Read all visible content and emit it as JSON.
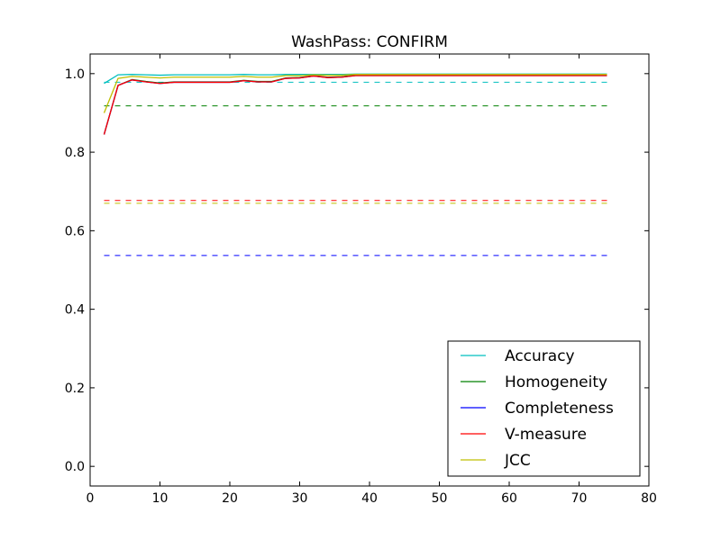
{
  "chart_data": {
    "type": "line",
    "title": "WashPass: CONFIRM",
    "xlabel": "",
    "ylabel": "",
    "xlim": [
      0,
      80
    ],
    "ylim": [
      -0.05,
      1.05
    ],
    "xticks": [
      0,
      10,
      20,
      30,
      40,
      50,
      60,
      70,
      80
    ],
    "yticks": [
      0.0,
      0.2,
      0.4,
      0.6,
      0.8,
      1.0
    ],
    "ytick_labels": [
      "0.0",
      "0.2",
      "0.4",
      "0.6",
      "0.8",
      "1.0"
    ],
    "grid": false,
    "legend_position": "bottom-right",
    "x": [
      2,
      4,
      6,
      8,
      10,
      12,
      14,
      16,
      18,
      20,
      22,
      24,
      26,
      28,
      30,
      32,
      34,
      36,
      38,
      40,
      42,
      44,
      46,
      48,
      50,
      52,
      54,
      56,
      58,
      60,
      62,
      64,
      66,
      68,
      70,
      72,
      74
    ],
    "series": [
      {
        "name": "Accuracy",
        "color": "#00bfbf",
        "values": [
          0.975,
          0.997,
          0.998,
          0.997,
          0.996,
          0.997,
          0.997,
          0.997,
          0.997,
          0.997,
          0.998,
          0.997,
          0.997,
          0.998,
          0.998,
          0.998,
          0.998,
          0.998,
          0.999,
          0.999,
          0.999,
          0.999,
          0.999,
          0.999,
          0.999,
          0.999,
          0.999,
          0.999,
          0.999,
          0.999,
          0.999,
          0.999,
          0.999,
          0.999,
          0.999,
          0.999,
          0.999
        ],
        "baseline": 0.978
      },
      {
        "name": "Homogeneity",
        "color": "#008000",
        "values": [
          0.845,
          0.97,
          0.985,
          0.98,
          0.976,
          0.979,
          0.979,
          0.979,
          0.979,
          0.979,
          0.983,
          0.98,
          0.98,
          0.989,
          0.99,
          0.995,
          0.991,
          0.992,
          0.996,
          0.996,
          0.996,
          0.996,
          0.996,
          0.996,
          0.996,
          0.996,
          0.996,
          0.996,
          0.996,
          0.996,
          0.996,
          0.996,
          0.996,
          0.996,
          0.996,
          0.996,
          0.996
        ],
        "baseline": 0.918
      },
      {
        "name": "Completeness",
        "color": "#0000ff",
        "values": [
          0.845,
          0.97,
          0.984,
          0.979,
          0.975,
          0.978,
          0.978,
          0.978,
          0.978,
          0.978,
          0.982,
          0.979,
          0.979,
          0.988,
          0.989,
          0.994,
          0.99,
          0.991,
          0.995,
          0.995,
          0.995,
          0.995,
          0.995,
          0.995,
          0.995,
          0.995,
          0.995,
          0.995,
          0.995,
          0.995,
          0.995,
          0.995,
          0.995,
          0.995,
          0.995,
          0.995,
          0.995
        ],
        "baseline": 0.537
      },
      {
        "name": "V-measure",
        "color": "#ff0000",
        "values": [
          0.845,
          0.97,
          0.984,
          0.979,
          0.975,
          0.978,
          0.978,
          0.978,
          0.978,
          0.978,
          0.982,
          0.979,
          0.979,
          0.988,
          0.989,
          0.994,
          0.99,
          0.991,
          0.995,
          0.995,
          0.995,
          0.995,
          0.995,
          0.995,
          0.995,
          0.995,
          0.995,
          0.995,
          0.995,
          0.995,
          0.995,
          0.995,
          0.995,
          0.995,
          0.995,
          0.995,
          0.995
        ],
        "baseline": 0.677
      },
      {
        "name": "JCC",
        "color": "#bfbf00",
        "values": [
          0.9,
          0.988,
          0.993,
          0.991,
          0.989,
          0.991,
          0.991,
          0.991,
          0.991,
          0.991,
          0.993,
          0.991,
          0.991,
          0.995,
          0.995,
          0.997,
          0.996,
          0.996,
          0.998,
          0.998,
          0.998,
          0.998,
          0.998,
          0.998,
          0.998,
          0.998,
          0.998,
          0.998,
          0.998,
          0.998,
          0.998,
          0.998,
          0.998,
          0.998,
          0.998,
          0.998,
          0.998
        ],
        "baseline": 0.67
      }
    ]
  }
}
